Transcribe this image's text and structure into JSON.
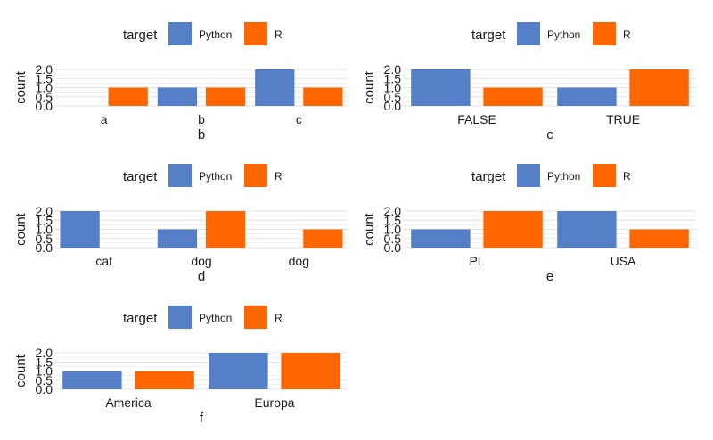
{
  "legend": {
    "title": "target",
    "entries": [
      "Python",
      "R"
    ]
  },
  "colors": {
    "Python": "#5580C7",
    "R": "#FF6600",
    "grid": "#E3E3E3",
    "text": "#1A1A1A"
  },
  "chart_data": [
    {
      "type": "bar",
      "title": "",
      "xlabel": "b",
      "ylabel": "count",
      "categories": [
        "a",
        "b",
        "c"
      ],
      "series": [
        {
          "name": "Python",
          "values": [
            null,
            1,
            2
          ]
        },
        {
          "name": "R",
          "values": [
            1,
            1,
            1
          ]
        }
      ],
      "ylim": [
        0,
        2
      ],
      "yticks": [
        "0.0",
        "0.5",
        "1.0",
        "1.5",
        "2.0"
      ],
      "legend_position": "top",
      "grid": true
    },
    {
      "type": "bar",
      "title": "",
      "xlabel": "c",
      "ylabel": "count",
      "categories": [
        "FALSE",
        "TRUE"
      ],
      "series": [
        {
          "name": "Python",
          "values": [
            2,
            1
          ]
        },
        {
          "name": "R",
          "values": [
            1,
            2
          ]
        }
      ],
      "ylim": [
        0,
        2
      ],
      "yticks": [
        "0.0",
        "0.5",
        "1.0",
        "1.5",
        "2.0"
      ],
      "legend_position": "top",
      "grid": true
    },
    {
      "type": "bar",
      "title": "",
      "xlabel": "d",
      "ylabel": "count",
      "categories": [
        "cat",
        "dog",
        "dog"
      ],
      "series": [
        {
          "name": "Python",
          "values": [
            2,
            1,
            null
          ]
        },
        {
          "name": "R",
          "values": [
            null,
            2,
            1
          ]
        }
      ],
      "ylim": [
        0,
        2
      ],
      "yticks": [
        "0.0",
        "0.5",
        "1.0",
        "1.5",
        "2.0"
      ],
      "legend_position": "top",
      "grid": true
    },
    {
      "type": "bar",
      "title": "",
      "xlabel": "e",
      "ylabel": "count",
      "categories": [
        "PL",
        "USA"
      ],
      "series": [
        {
          "name": "Python",
          "values": [
            1,
            2
          ]
        },
        {
          "name": "R",
          "values": [
            2,
            1
          ]
        }
      ],
      "ylim": [
        0,
        2
      ],
      "yticks": [
        "0.0",
        "0.5",
        "1.0",
        "1.5",
        "2.0"
      ],
      "legend_position": "top",
      "grid": true
    },
    {
      "type": "bar",
      "title": "",
      "xlabel": "f",
      "ylabel": "count",
      "categories": [
        "America",
        "Europa"
      ],
      "series": [
        {
          "name": "Python",
          "values": [
            1,
            2
          ]
        },
        {
          "name": "R",
          "values": [
            1,
            2
          ]
        }
      ],
      "ylim": [
        0,
        2
      ],
      "yticks": [
        "0.0",
        "0.5",
        "1.0",
        "1.5",
        "2.0"
      ],
      "legend_position": "top",
      "grid": true
    }
  ]
}
